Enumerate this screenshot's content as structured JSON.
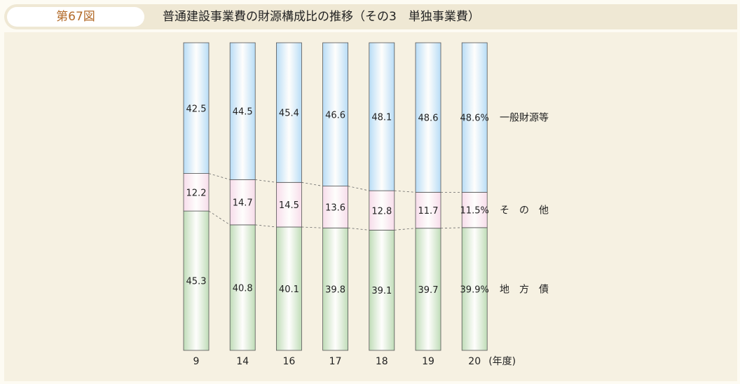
{
  "header": {
    "figure_label": "第67図",
    "title": "普通建設事業費の財源構成比の推移（その3　単独事業費）"
  },
  "colors": {
    "general": "#b7dcf6",
    "other": "#f7dcea",
    "local_bond": "#bfdcb7"
  },
  "chart_data": {
    "type": "bar",
    "stacked": true,
    "normalized": true,
    "categories": [
      "9",
      "14",
      "16",
      "17",
      "18",
      "19",
      "20"
    ],
    "x_unit": "(年度)",
    "series": [
      {
        "key": "local_bond",
        "name": "地　方　債",
        "values": [
          45.3,
          40.8,
          40.1,
          39.8,
          39.1,
          39.7,
          39.9
        ]
      },
      {
        "key": "other",
        "name": "そ　の　他",
        "values": [
          12.2,
          14.7,
          14.5,
          13.6,
          12.8,
          11.7,
          11.5
        ]
      },
      {
        "key": "general",
        "name": "一般財源等",
        "values": [
          42.5,
          44.5,
          45.4,
          46.6,
          48.1,
          48.6,
          48.6
        ]
      }
    ],
    "last_label_suffix": "%",
    "ylim": [
      0,
      100
    ]
  }
}
